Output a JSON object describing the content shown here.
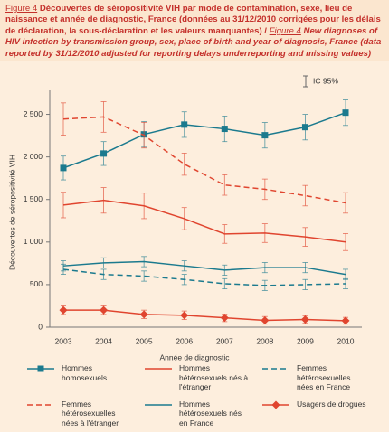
{
  "chart_data": {
    "type": "line",
    "figure_label": "Figure 4",
    "title": "Découvertes de séropositivité VIH par mode de contamination, sexe, lieu de naissance et année de diagnostic, France (données au 31/12/2010 corrigées pour les délais de déclaration, la sous-déclaration et les valeurs manquantes) /",
    "subtitle": "New diagnoses of HIV infection by transmission group, sex, place of birth and year of diagnosis, France (data reported by 31/12/2010 adjusted for reporting delays underreporting and missing values)",
    "annotation": "IC 95%",
    "xlabel": "Année de diagnostic",
    "ylabel": "Découvertes de séropositivité VIH",
    "categories": [
      "2003",
      "2004",
      "2005",
      "2006",
      "2007",
      "2008",
      "2009",
      "2010"
    ],
    "ylim": [
      0,
      2750
    ],
    "yticks": [
      0,
      500,
      {
        "value": 1000,
        "label": "1 000"
      },
      {
        "value": 1500,
        "label": "1 500"
      },
      {
        "value": 2000,
        "label": "2 000"
      },
      {
        "value": 2500,
        "label": "2 500"
      }
    ],
    "series": [
      {
        "name": "Hommes homosexuels",
        "color": "#1b7a8e",
        "dash": false,
        "marker": "square",
        "values": [
          1870,
          2040,
          2265,
          2380,
          2330,
          2255,
          2350,
          2520
        ],
        "errors": [
          140,
          140,
          150,
          150,
          150,
          150,
          150,
          150
        ]
      },
      {
        "name": "Hommes hétérosexuels nés à l'étranger",
        "color": "#e0452f",
        "dash": false,
        "marker": "none",
        "values": [
          1435,
          1490,
          1425,
          1275,
          1095,
          1105,
          1060,
          1000
        ],
        "errors": [
          150,
          150,
          150,
          130,
          110,
          110,
          110,
          100
        ]
      },
      {
        "name": "Femmes hétérosexuelles nées en France",
        "color": "#1b7a8e",
        "dash": true,
        "marker": "none",
        "values": [
          680,
          620,
          600,
          560,
          510,
          490,
          500,
          510
        ],
        "errors": [
          60,
          60,
          60,
          60,
          60,
          60,
          60,
          60
        ]
      },
      {
        "name": "Femmes hétérosexuelles nées à l'étranger",
        "color": "#e0452f",
        "dash": true,
        "marker": "none",
        "values": [
          2445,
          2470,
          2255,
          1915,
          1670,
          1620,
          1545,
          1460
        ],
        "errors": [
          190,
          180,
          150,
          130,
          120,
          120,
          120,
          120
        ]
      },
      {
        "name": "Hommes hétérosexuels nés en France",
        "color": "#1b7a8e",
        "dash": false,
        "marker": "none",
        "values": [
          720,
          755,
          770,
          720,
          670,
          700,
          700,
          620
        ],
        "errors": [
          60,
          60,
          60,
          60,
          60,
          60,
          60,
          60
        ]
      },
      {
        "name": "Usagers de drogues",
        "color": "#e0452f",
        "dash": false,
        "marker": "diamond",
        "values": [
          200,
          200,
          150,
          140,
          110,
          80,
          90,
          75
        ],
        "errors": [
          50,
          50,
          50,
          50,
          45,
          45,
          45,
          40
        ]
      }
    ]
  }
}
